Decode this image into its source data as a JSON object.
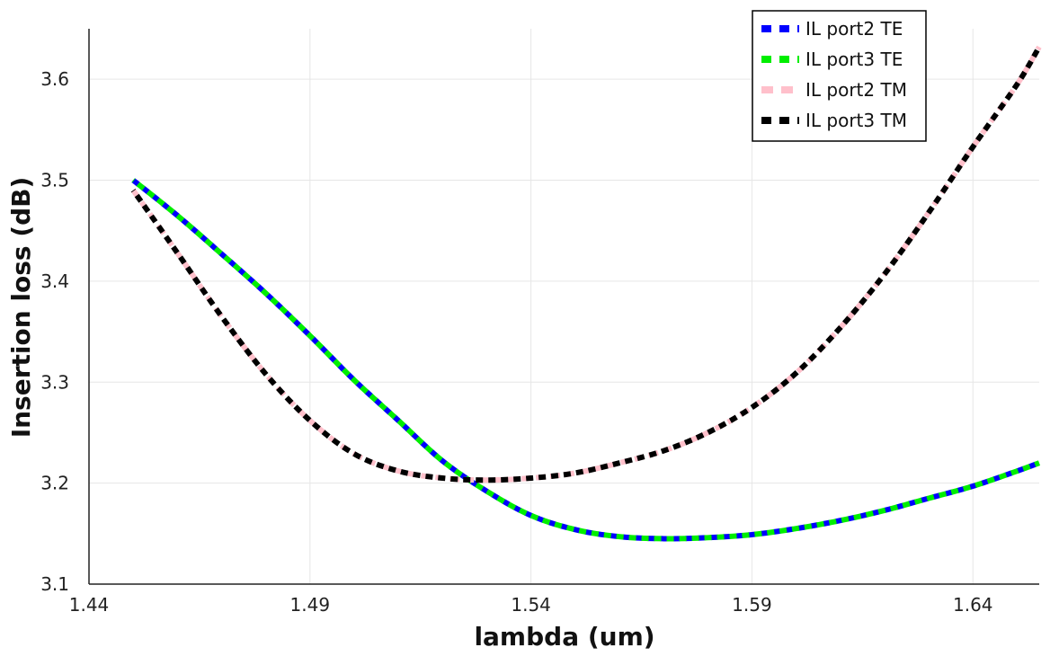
{
  "chart_data": {
    "type": "line",
    "xlabel": "lambda (um)",
    "ylabel": "Insertion loss (dB)",
    "xlim": [
      1.44,
      1.655
    ],
    "ylim": [
      3.1,
      3.65
    ],
    "xticks": [
      1.44,
      1.49,
      1.54,
      1.59,
      1.64
    ],
    "xtick_labels": [
      "1.44",
      "1.49",
      "1.54",
      "1.59",
      "1.64"
    ],
    "yticks": [
      3.1,
      3.2,
      3.3,
      3.4,
      3.5,
      3.6
    ],
    "ytick_labels": [
      "3.1",
      "3.2",
      "3.3",
      "3.4",
      "3.5",
      "3.6"
    ],
    "grid": true,
    "legend_position": "top-right",
    "series": [
      {
        "name": "IL port2 TE",
        "color": "#0000ff",
        "dash": "dense",
        "x": [
          1.45,
          1.46,
          1.47,
          1.48,
          1.49,
          1.5,
          1.51,
          1.52,
          1.53,
          1.54,
          1.55,
          1.56,
          1.57,
          1.58,
          1.59,
          1.6,
          1.61,
          1.62,
          1.63,
          1.64,
          1.65,
          1.655
        ],
        "y": [
          3.5,
          3.465,
          3.427,
          3.388,
          3.346,
          3.302,
          3.262,
          3.222,
          3.192,
          3.168,
          3.154,
          3.147,
          3.145,
          3.146,
          3.149,
          3.155,
          3.163,
          3.173,
          3.185,
          3.197,
          3.212,
          3.22
        ]
      },
      {
        "name": "IL port3 TE",
        "color": "#00ee00",
        "dash": "dense",
        "x": [
          1.45,
          1.46,
          1.47,
          1.48,
          1.49,
          1.5,
          1.51,
          1.52,
          1.53,
          1.54,
          1.55,
          1.56,
          1.57,
          1.58,
          1.59,
          1.6,
          1.61,
          1.62,
          1.63,
          1.64,
          1.65,
          1.655
        ],
        "y": [
          3.5,
          3.465,
          3.427,
          3.388,
          3.346,
          3.302,
          3.262,
          3.222,
          3.192,
          3.168,
          3.154,
          3.147,
          3.145,
          3.146,
          3.149,
          3.155,
          3.163,
          3.173,
          3.185,
          3.197,
          3.212,
          3.22
        ]
      },
      {
        "name": "IL port2 TM",
        "color": "#ffc0cb",
        "dash": "loose",
        "x": [
          1.45,
          1.46,
          1.47,
          1.48,
          1.49,
          1.5,
          1.51,
          1.52,
          1.53,
          1.54,
          1.55,
          1.56,
          1.57,
          1.58,
          1.59,
          1.6,
          1.61,
          1.62,
          1.63,
          1.64,
          1.65,
          1.655
        ],
        "y": [
          3.49,
          3.428,
          3.365,
          3.308,
          3.262,
          3.229,
          3.212,
          3.205,
          3.203,
          3.205,
          3.21,
          3.22,
          3.232,
          3.25,
          3.275,
          3.309,
          3.354,
          3.407,
          3.468,
          3.533,
          3.595,
          3.632
        ]
      },
      {
        "name": "IL port3 TM",
        "color": "#000000",
        "dash": "dense",
        "x": [
          1.45,
          1.46,
          1.47,
          1.48,
          1.49,
          1.5,
          1.51,
          1.52,
          1.53,
          1.54,
          1.55,
          1.56,
          1.57,
          1.58,
          1.59,
          1.6,
          1.61,
          1.62,
          1.63,
          1.64,
          1.65,
          1.655
        ],
        "y": [
          3.49,
          3.428,
          3.365,
          3.308,
          3.262,
          3.229,
          3.212,
          3.205,
          3.203,
          3.205,
          3.21,
          3.22,
          3.232,
          3.25,
          3.275,
          3.309,
          3.354,
          3.407,
          3.468,
          3.533,
          3.595,
          3.632
        ]
      }
    ]
  }
}
